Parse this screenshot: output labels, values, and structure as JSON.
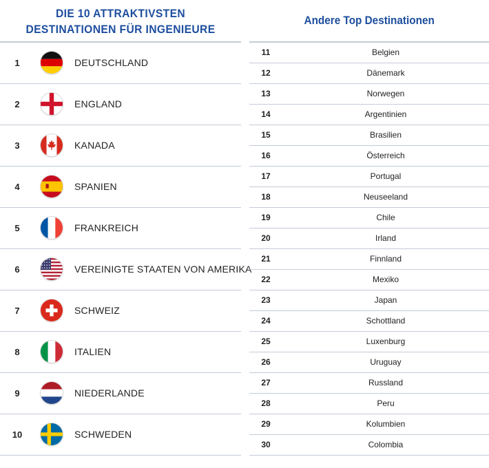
{
  "left": {
    "title_line1": "DIE 10 ATTRAKTIVSTEN",
    "title_line2": "DESTINATIONEN FÜR INGENIEURE",
    "items": [
      {
        "rank": "1",
        "name": "DEUTSCHLAND",
        "flag": "germany-flag-icon"
      },
      {
        "rank": "2",
        "name": "ENGLAND",
        "flag": "england-flag-icon"
      },
      {
        "rank": "3",
        "name": "KANADA",
        "flag": "canada-flag-icon"
      },
      {
        "rank": "4",
        "name": "SPANIEN",
        "flag": "spain-flag-icon"
      },
      {
        "rank": "5",
        "name": "FRANKREICH",
        "flag": "france-flag-icon"
      },
      {
        "rank": "6",
        "name": "VEREINIGTE STAATEN VON AMERIKA",
        "flag": "usa-flag-icon"
      },
      {
        "rank": "7",
        "name": "SCHWEIZ",
        "flag": "switzerland-flag-icon"
      },
      {
        "rank": "8",
        "name": "ITALIEN",
        "flag": "italy-flag-icon"
      },
      {
        "rank": "9",
        "name": "NIEDERLANDE",
        "flag": "netherlands-flag-icon"
      },
      {
        "rank": "10",
        "name": "SCHWEDEN",
        "flag": "sweden-flag-icon"
      }
    ]
  },
  "right": {
    "title": "Andere Top Destinationen",
    "items": [
      {
        "rank": "11",
        "name": "Belgien"
      },
      {
        "rank": "12",
        "name": "Dänemark"
      },
      {
        "rank": "13",
        "name": "Norwegen"
      },
      {
        "rank": "14",
        "name": "Argentinien"
      },
      {
        "rank": "15",
        "name": "Brasilien"
      },
      {
        "rank": "16",
        "name": "Österreich"
      },
      {
        "rank": "17",
        "name": "Portugal"
      },
      {
        "rank": "18",
        "name": "Neuseeland"
      },
      {
        "rank": "19",
        "name": "Chile"
      },
      {
        "rank": "20",
        "name": "Irland"
      },
      {
        "rank": "21",
        "name": "Finnland"
      },
      {
        "rank": "22",
        "name": "Mexiko"
      },
      {
        "rank": "23",
        "name": "Japan"
      },
      {
        "rank": "24",
        "name": "Schottland"
      },
      {
        "rank": "25",
        "name": "Luxenburg"
      },
      {
        "rank": "26",
        "name": "Uruguay"
      },
      {
        "rank": "27",
        "name": "Russland"
      },
      {
        "rank": "28",
        "name": "Peru"
      },
      {
        "rank": "29",
        "name": "Kolumbien"
      },
      {
        "rank": "30",
        "name": "Colombia"
      }
    ]
  },
  "colors": {
    "title": "#1d4e9e",
    "rule": "#c4cbd7"
  }
}
